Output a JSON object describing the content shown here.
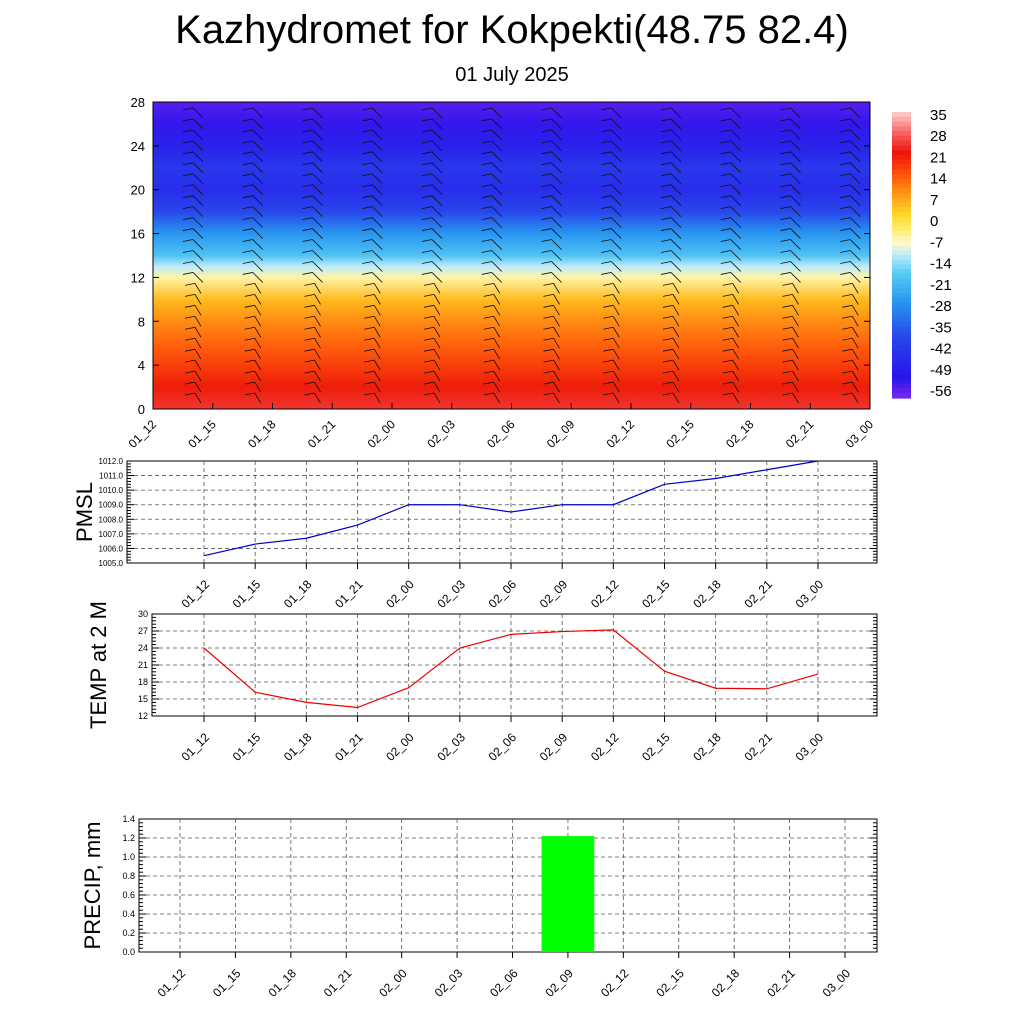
{
  "title": "Kazhydromet for Kokpekti(48.75 82.4)",
  "subtitle": "01 July 2025",
  "time_labels": [
    "01_12",
    "01_15",
    "01_18",
    "01_21",
    "02_00",
    "02_03",
    "02_06",
    "02_09",
    "02_12",
    "02_15",
    "02_18",
    "02_21",
    "03_00"
  ],
  "chart_data": [
    {
      "type": "heatmap",
      "title": "",
      "ylabel": "",
      "x": [
        "01_12",
        "01_15",
        "01_18",
        "01_21",
        "02_00",
        "02_03",
        "02_06",
        "02_09",
        "02_12",
        "02_15",
        "02_18",
        "02_21",
        "03_00"
      ],
      "y_ticks": [
        0,
        4,
        8,
        12,
        16,
        20,
        24,
        28
      ],
      "ylim": [
        0,
        28
      ],
      "colorbar": {
        "labels": [
          "35",
          "28",
          "21",
          "14",
          "7",
          "0",
          "-7",
          "-14",
          "-21",
          "-28",
          "-35",
          "-42",
          "-49",
          "-56"
        ],
        "range": [
          -63,
          35
        ]
      },
      "temperature_profile": [
        {
          "level": 0,
          "value": 24
        },
        {
          "level": 2,
          "value": 20
        },
        {
          "level": 4,
          "value": 16
        },
        {
          "level": 6,
          "value": 12
        },
        {
          "level": 8,
          "value": 8
        },
        {
          "level": 10,
          "value": 3
        },
        {
          "level": 12,
          "value": -8
        },
        {
          "level": 13,
          "value": -14
        },
        {
          "level": 14,
          "value": -22
        },
        {
          "level": 16,
          "value": -30
        },
        {
          "level": 18,
          "value": -42
        },
        {
          "level": 20,
          "value": -49
        },
        {
          "level": 22,
          "value": -46
        },
        {
          "level": 24,
          "value": -52
        },
        {
          "level": 26,
          "value": -57
        },
        {
          "level": 28,
          "value": -60
        }
      ],
      "wind_barbs": true
    },
    {
      "type": "line",
      "ylabel": "PMSL",
      "x": [
        "01_12",
        "01_15",
        "01_18",
        "01_21",
        "02_00",
        "02_03",
        "02_06",
        "02_09",
        "02_12",
        "02_15",
        "02_18",
        "02_21",
        "03_00"
      ],
      "y_ticks": [
        "1005.0",
        "1006.0",
        "1007.0",
        "1008.0",
        "1009.0",
        "1010.0",
        "1011.0",
        "1012.0"
      ],
      "ylim": [
        1005,
        1012
      ],
      "color": "#0000cc",
      "series": [
        {
          "values": [
            1005.5,
            1006.3,
            1006.7,
            1007.6,
            1009.0,
            1009.0,
            1008.5,
            1009.0,
            1009.0,
            1010.4,
            1010.8,
            1011.4,
            1012.0
          ]
        }
      ]
    },
    {
      "type": "line",
      "ylabel": "TEMP at 2 M",
      "x": [
        "01_12",
        "01_15",
        "01_18",
        "01_21",
        "02_00",
        "02_03",
        "02_06",
        "02_09",
        "02_12",
        "02_15",
        "02_18",
        "02_21",
        "03_00"
      ],
      "y_ticks": [
        "12",
        "15",
        "18",
        "21",
        "24",
        "27",
        "30"
      ],
      "ylim": [
        12,
        30
      ],
      "color": "#ee0000",
      "series": [
        {
          "values": [
            24.0,
            16.2,
            14.4,
            13.5,
            17.0,
            24.0,
            26.4,
            26.9,
            27.2,
            19.9,
            16.9,
            16.8,
            19.4
          ]
        }
      ]
    },
    {
      "type": "bar",
      "ylabel": "PRECIP, mm",
      "categories": [
        "01_12",
        "01_15",
        "01_18",
        "01_21",
        "02_00",
        "02_03",
        "02_06",
        "02_09",
        "02_12",
        "02_15",
        "02_18",
        "02_21",
        "03_00"
      ],
      "values": [
        0,
        0,
        0,
        0,
        0,
        0,
        0,
        1.22,
        0,
        0,
        0,
        0,
        0
      ],
      "y_ticks": [
        "0.0",
        "0.2",
        "0.4",
        "0.6",
        "0.8",
        "1.0",
        "1.2",
        "1.4"
      ],
      "ylim": [
        0,
        1.4
      ],
      "color": "#00ff00"
    }
  ]
}
